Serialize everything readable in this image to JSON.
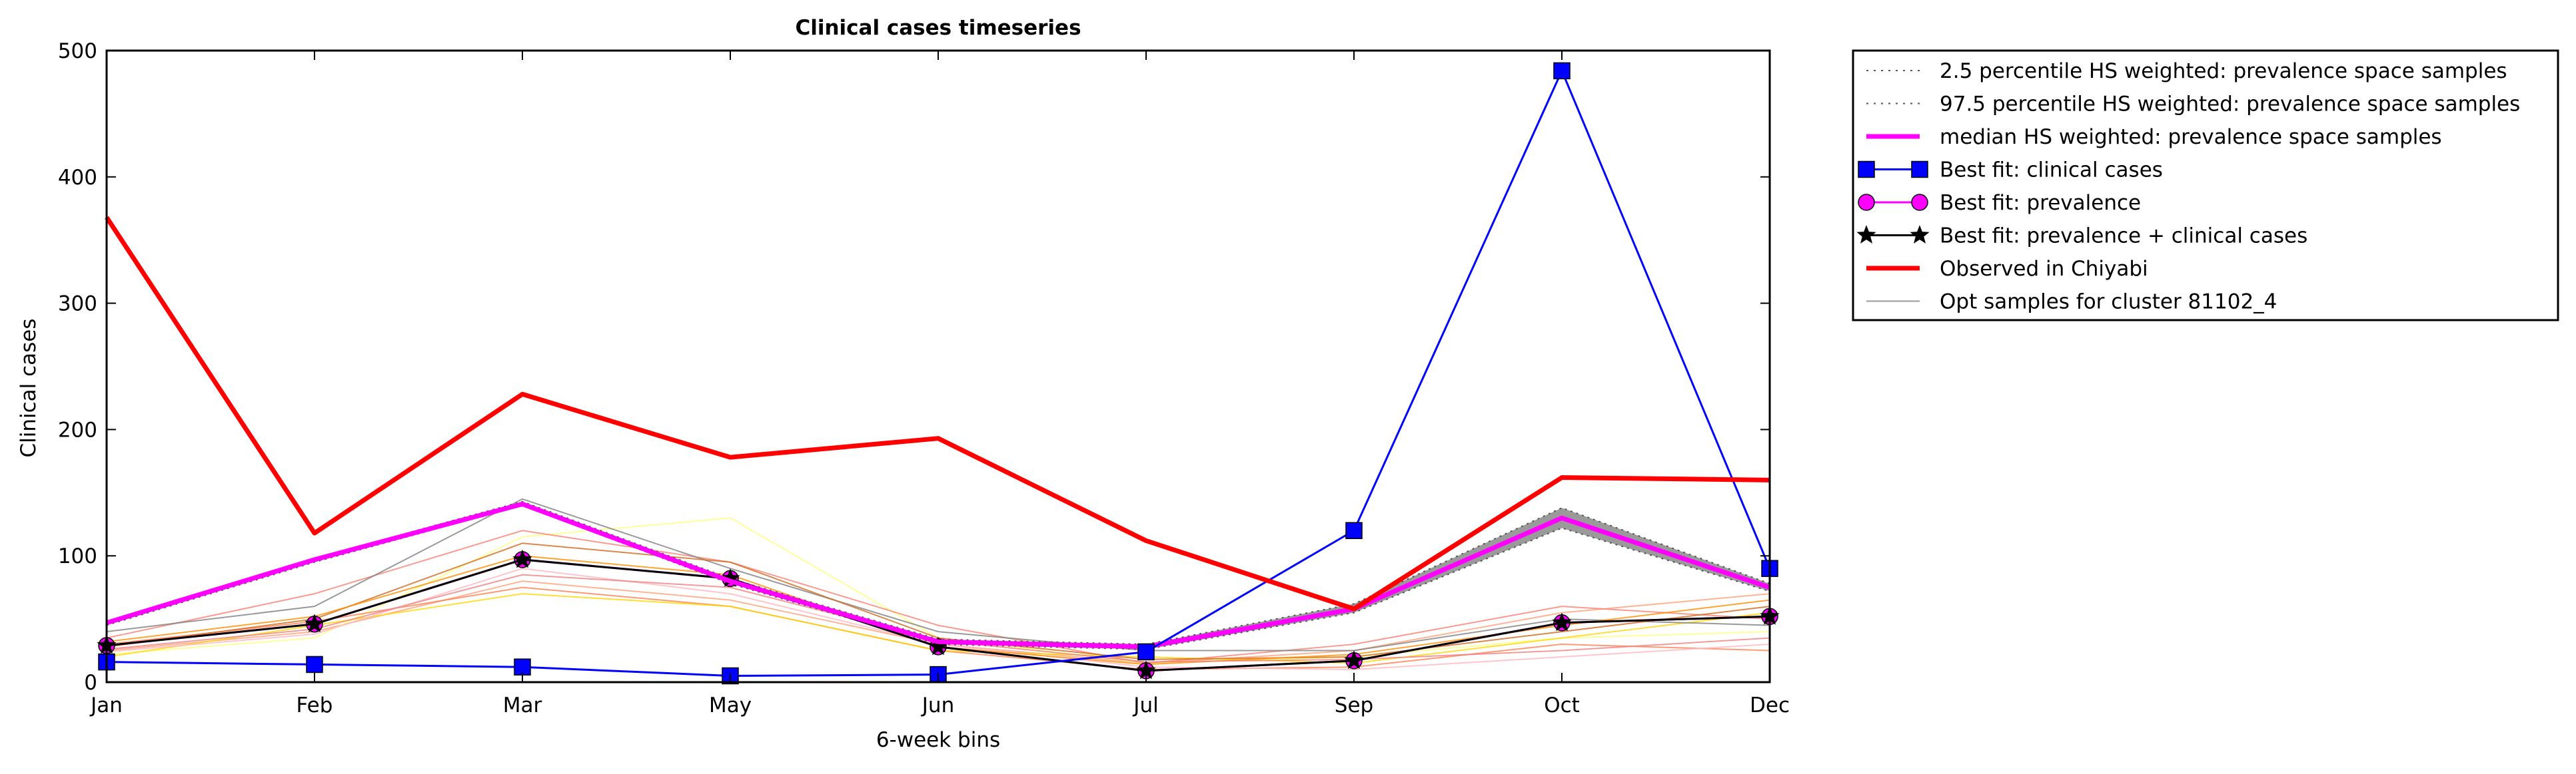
{
  "chart_data": {
    "type": "line",
    "title": "Clinical cases timeseries",
    "xlabel": "6-week bins",
    "ylabel": "Clinical cases",
    "categories": [
      "Jan",
      "Feb",
      "Mar",
      "May",
      "Jun",
      "Jul",
      "Sep",
      "Oct",
      "Dec"
    ],
    "yticks": [
      "0",
      "100",
      "200",
      "300",
      "400",
      "500"
    ],
    "ylim": [
      0,
      500
    ],
    "grid": false,
    "legend_position": "outside-right-top",
    "series": [
      {
        "name": "2.5 percentile HS weighted: prevalence space samples",
        "color": "#555555",
        "style": "dotted",
        "values": [
          45,
          95,
          140,
          78,
          30,
          26,
          55,
          122,
          72
        ]
      },
      {
        "name": "97.5 percentile HS weighted: prevalence space samples",
        "color": "#555555",
        "style": "dotted",
        "values": [
          48,
          98,
          143,
          82,
          34,
          30,
          62,
          138,
          78
        ]
      },
      {
        "name": "median HS weighted: prevalence space samples",
        "color": "#ff00ff",
        "style": "solid",
        "values": [
          47,
          97,
          141,
          80,
          32,
          28,
          58,
          130,
          75
        ]
      },
      {
        "name": "Best fit: clinical cases",
        "color": "#0000ff",
        "marker": "square",
        "values": [
          16,
          14,
          12,
          5,
          6,
          24,
          120,
          484,
          90
        ]
      },
      {
        "name": "Best fit: prevalence",
        "color": "#ff00ff",
        "marker": "circle",
        "values": [
          29,
          46,
          97,
          82,
          28,
          9,
          17,
          47,
          52
        ]
      },
      {
        "name": "Best fit: prevalence + clinical cases",
        "color": "#000000",
        "marker": "star",
        "values": [
          29,
          46,
          97,
          82,
          28,
          9,
          17,
          47,
          52
        ]
      },
      {
        "name": "Observed in Chiyabi",
        "color": "#ff0000",
        "style": "solid",
        "values": [
          368,
          118,
          228,
          178,
          193,
          112,
          58,
          162,
          160
        ]
      },
      {
        "name": "Opt samples for cluster 81102_4",
        "color": "#999999",
        "style": "solid",
        "values": null
      }
    ],
    "samples": [
      {
        "color": "#ffa07a",
        "values": [
          25,
          40,
          80,
          65,
          30,
          15,
          25,
          55,
          70
        ]
      },
      {
        "color": "#ffff80",
        "values": [
          22,
          35,
          115,
          130,
          35,
          15,
          20,
          35,
          40
        ]
      },
      {
        "color": "#ff7f50",
        "values": [
          30,
          48,
          75,
          60,
          25,
          10,
          12,
          30,
          25
        ]
      },
      {
        "color": "#fa8072",
        "values": [
          35,
          70,
          120,
          95,
          45,
          15,
          30,
          60,
          50
        ]
      },
      {
        "color": "#ffd700",
        "values": [
          20,
          45,
          70,
          60,
          25,
          20,
          15,
          35,
          55
        ]
      },
      {
        "color": "#808080",
        "values": [
          40,
          60,
          145,
          90,
          40,
          25,
          25,
          50,
          45
        ]
      },
      {
        "color": "#d2691e",
        "values": [
          28,
          50,
          110,
          95,
          35,
          18,
          20,
          40,
          60
        ]
      },
      {
        "color": "#ffb6c1",
        "values": [
          24,
          38,
          90,
          70,
          30,
          12,
          10,
          20,
          30
        ]
      },
      {
        "color": "#ff8c00",
        "values": [
          32,
          52,
          100,
          85,
          28,
          14,
          22,
          45,
          65
        ]
      },
      {
        "color": "#f08080",
        "values": [
          26,
          42,
          85,
          75,
          33,
          16,
          18,
          25,
          35
        ]
      }
    ]
  }
}
